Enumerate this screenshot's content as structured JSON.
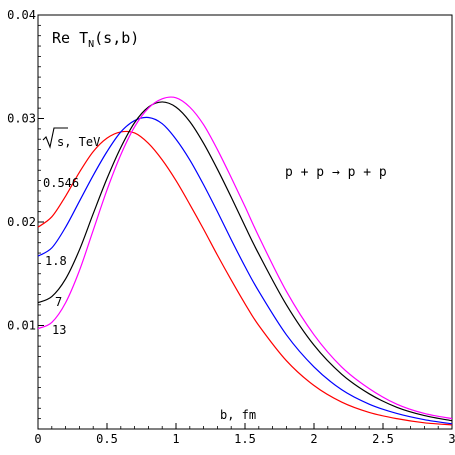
{
  "chart_data": {
    "type": "line",
    "title_main": "Re T",
    "title_sub": "N",
    "title_args": "(s,b)",
    "xlabel": "b, fm",
    "ylabel": "",
    "xlim": [
      0,
      3
    ],
    "ylim": [
      0,
      0.04
    ],
    "x_ticks": [
      0,
      0.5,
      1,
      1.5,
      2,
      2.5,
      3
    ],
    "x_tick_labels": [
      "0",
      "0.5",
      "1",
      "1.5",
      "2",
      "2.5",
      "3"
    ],
    "y_ticks": [
      0.01,
      0.02,
      0.03,
      0.04
    ],
    "y_tick_labels": [
      "0.01",
      "0.02",
      "0.03",
      "0.04"
    ],
    "grid": false,
    "energy_header": "s, TeV",
    "reaction": "p + p → p + p",
    "series": [
      {
        "name": "0.546",
        "color": "#ff0000",
        "x": [
          0,
          0.1,
          0.2,
          0.3,
          0.4,
          0.5,
          0.6,
          0.7,
          0.8,
          0.9,
          1.0,
          1.1,
          1.2,
          1.3,
          1.4,
          1.5,
          1.6,
          1.8,
          2.0,
          2.2,
          2.4,
          2.6,
          2.8,
          3.0
        ],
        "y": [
          0.0195,
          0.0205,
          0.0225,
          0.0248,
          0.0268,
          0.0281,
          0.0287,
          0.0286,
          0.0276,
          0.026,
          0.024,
          0.0217,
          0.0193,
          0.0168,
          0.0144,
          0.0121,
          0.01,
          0.0066,
          0.0042,
          0.0026,
          0.0016,
          0.001,
          0.0006,
          0.0004
        ]
      },
      {
        "name": "1.8",
        "color": "#0000ff",
        "x": [
          0,
          0.1,
          0.2,
          0.3,
          0.4,
          0.5,
          0.6,
          0.7,
          0.8,
          0.9,
          1.0,
          1.1,
          1.2,
          1.3,
          1.4,
          1.5,
          1.6,
          1.8,
          2.0,
          2.2,
          2.4,
          2.6,
          2.8,
          3.0
        ],
        "y": [
          0.0167,
          0.0175,
          0.0195,
          0.022,
          0.0245,
          0.0268,
          0.0287,
          0.0298,
          0.0301,
          0.0295,
          0.028,
          0.026,
          0.0236,
          0.021,
          0.0183,
          0.0157,
          0.0133,
          0.0091,
          0.006,
          0.0038,
          0.0024,
          0.0015,
          0.0009,
          0.0005
        ]
      },
      {
        "name": "7",
        "color": "#000000",
        "x": [
          0,
          0.1,
          0.2,
          0.3,
          0.4,
          0.5,
          0.6,
          0.7,
          0.8,
          0.9,
          1.0,
          1.1,
          1.2,
          1.3,
          1.4,
          1.5,
          1.6,
          1.8,
          2.0,
          2.2,
          2.4,
          2.6,
          2.8,
          3.0
        ],
        "y": [
          0.0122,
          0.0128,
          0.0145,
          0.0173,
          0.0208,
          0.0242,
          0.0272,
          0.0296,
          0.0311,
          0.0316,
          0.0311,
          0.0297,
          0.0276,
          0.0251,
          0.0224,
          0.0196,
          0.0169,
          0.012,
          0.0081,
          0.0053,
          0.0034,
          0.0021,
          0.0013,
          0.0008
        ]
      },
      {
        "name": "13",
        "color": "#ff00ff",
        "x": [
          0,
          0.1,
          0.2,
          0.3,
          0.4,
          0.5,
          0.6,
          0.7,
          0.8,
          0.9,
          1.0,
          1.1,
          1.2,
          1.3,
          1.4,
          1.5,
          1.6,
          1.8,
          2.0,
          2.2,
          2.4,
          2.6,
          2.8,
          3.0
        ],
        "y": [
          0.0097,
          0.0103,
          0.0122,
          0.0153,
          0.0192,
          0.0231,
          0.0265,
          0.0292,
          0.031,
          0.0319,
          0.032,
          0.0311,
          0.0294,
          0.027,
          0.0243,
          0.0215,
          0.0186,
          0.0133,
          0.0091,
          0.006,
          0.0039,
          0.0024,
          0.0015,
          0.001
        ]
      }
    ]
  }
}
